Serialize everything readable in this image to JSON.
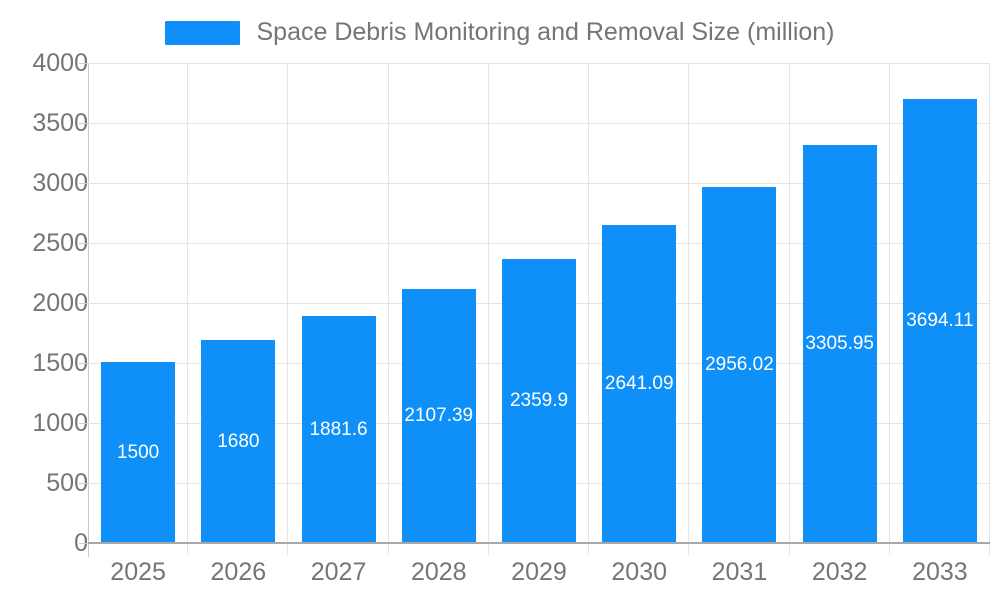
{
  "legend": {
    "label": "Space Debris Monitoring and Removal Size (million)"
  },
  "chart_data": {
    "type": "bar",
    "title": "Space Debris Monitoring and Removal Size (million)",
    "xlabel": "",
    "ylabel": "",
    "categories": [
      "2025",
      "2026",
      "2027",
      "2028",
      "2029",
      "2030",
      "2031",
      "2032",
      "2033"
    ],
    "values": [
      1500,
      1680,
      1881.6,
      2107.39,
      2359.9,
      2641.09,
      2956.02,
      3305.95,
      3694.11
    ],
    "bar_labels": [
      "1500",
      "1680",
      "1881.6",
      "2107.39",
      "2359.9",
      "2641.09",
      "2956.02",
      "3305.95",
      "3694.11"
    ],
    "ylim": [
      0,
      4000
    ],
    "yticks": [
      0,
      500,
      1000,
      1500,
      2000,
      2500,
      3000,
      3500,
      4000
    ],
    "grid": true,
    "legend_position": "top-center",
    "colors": {
      "bar": "#0e90f8",
      "bar_label_text": "#ffffff",
      "axis_text": "#757575",
      "gridline": "#e4e4e4",
      "baseline": "#a8a8a8",
      "axis_line": "#c9c9c9"
    }
  }
}
